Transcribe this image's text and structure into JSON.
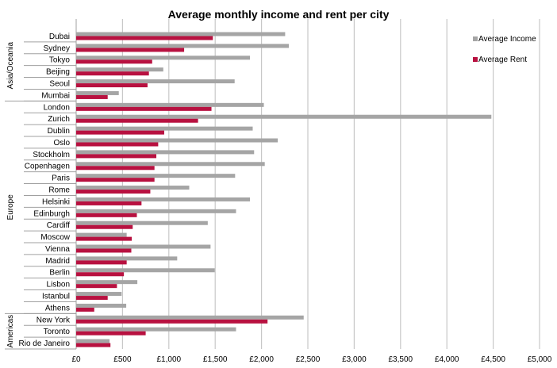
{
  "chart_data": {
    "type": "bar",
    "orientation": "horizontal",
    "title": "Average monthly income and rent per city",
    "xlabel": "",
    "ylabel": "",
    "xlim": [
      0,
      5000
    ],
    "x_ticks": [
      "£0",
      "£500",
      "£1,000",
      "£1,500",
      "£2,000",
      "£2,500",
      "£3,000",
      "£3,500",
      "£4,000",
      "£4,500",
      "£5,000"
    ],
    "x_tick_values": [
      0,
      500,
      1000,
      1500,
      2000,
      2500,
      3000,
      3500,
      4000,
      4500,
      5000
    ],
    "grid": "vertical",
    "legend_position": "top-right",
    "groups": [
      {
        "name": "Asia/Oceania",
        "categories": [
          "Dubai",
          "Sydney",
          "Tokyo",
          "Beijing",
          "Seoul",
          "Mumbai"
        ]
      },
      {
        "name": "Europe",
        "categories": [
          "London",
          "Zurich",
          "Dublin",
          "Oslo",
          "Stockholm",
          "Copenhagen",
          "Paris",
          "Rome",
          "Helsinki",
          "Edinburgh",
          "Cardiff",
          "Moscow",
          "Vienna",
          "Madrid",
          "Berlin",
          "Lisbon",
          "Istanbul",
          "Athens"
        ]
      },
      {
        "name": "Americas",
        "categories": [
          "New York",
          "Toronto",
          "Rio de Janeiro"
        ]
      }
    ],
    "categories": [
      "Dubai",
      "Sydney",
      "Tokyo",
      "Beijing",
      "Seoul",
      "Mumbai",
      "London",
      "Zurich",
      "Dublin",
      "Oslo",
      "Stockholm",
      "Copenhagen",
      "Paris",
      "Rome",
      "Helsinki",
      "Edinburgh",
      "Cardiff",
      "Moscow",
      "Vienna",
      "Madrid",
      "Berlin",
      "Lisbon",
      "Istanbul",
      "Athens",
      "New York",
      "Toronto",
      "Rio de Janeiro"
    ],
    "series": [
      {
        "name": "Average Income",
        "color": "#a5a5a5",
        "values": [
          2255,
          2295,
          1875,
          940,
          1710,
          460,
          2025,
          4480,
          1905,
          2175,
          1920,
          2035,
          1715,
          1220,
          1875,
          1725,
          1420,
          545,
          1450,
          1090,
          1495,
          660,
          490,
          540,
          2455,
          1725,
          360
        ]
      },
      {
        "name": "Average Rent",
        "color": "#b81140",
        "values": [
          1475,
          1165,
          820,
          785,
          770,
          340,
          1460,
          1315,
          950,
          885,
          865,
          845,
          845,
          800,
          705,
          655,
          610,
          600,
          595,
          545,
          515,
          440,
          340,
          195,
          2065,
          750,
          370
        ]
      }
    ]
  }
}
